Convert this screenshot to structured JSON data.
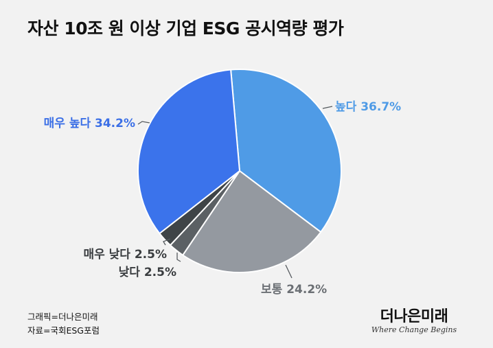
{
  "chart_data": {
    "type": "pie",
    "title": "자산 10조 원 이상 기업 ESG 공시역량 평가",
    "slices": [
      {
        "label": "높다",
        "value": 36.7,
        "display": "높다 36.7%",
        "color": "#4f9be6"
      },
      {
        "label": "보통",
        "value": 24.2,
        "display": "보통 24.2%",
        "color": "#9499a0"
      },
      {
        "label": "낮다",
        "value": 2.5,
        "display": "낮다 2.5%",
        "color": "#5b6064"
      },
      {
        "label": "매우 낮다",
        "value": 2.5,
        "display": "매우 낮다 2.5%",
        "color": "#3f4447"
      },
      {
        "label": "매우 높다",
        "value": 34.2,
        "display": "매우 높다 34.2%",
        "color": "#3b73eb"
      }
    ],
    "label_colors": {
      "높다": "#4f9be6",
      "보통": "#6b6f74",
      "낮다": "#3a3d40",
      "매우 낮다": "#3a3d40",
      "매우 높다": "#3b6fe6"
    },
    "legend": "none"
  },
  "footer": {
    "graphic_credit": "그래픽=더나은미래",
    "source": "자료=국회ESG포럼"
  },
  "logo": {
    "name": "더나은미래",
    "tagline": "Where Change Begins"
  }
}
